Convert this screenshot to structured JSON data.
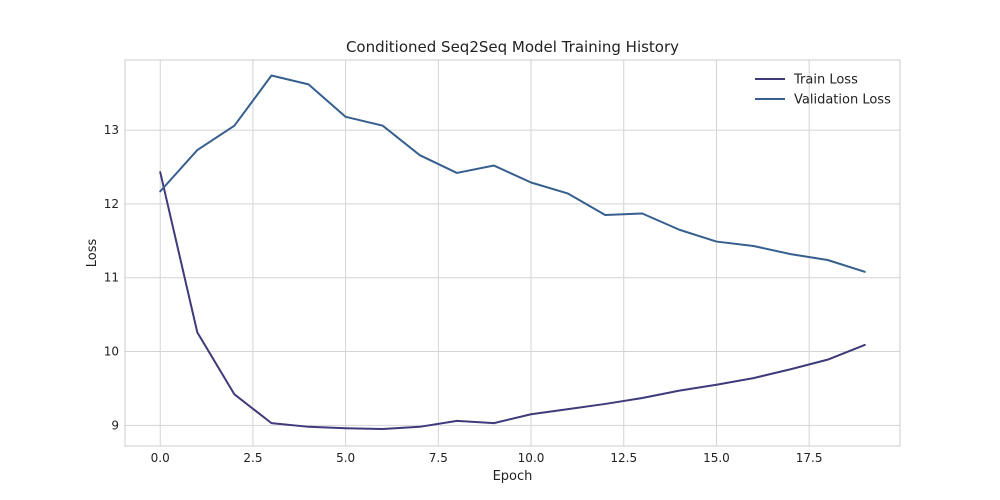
{
  "chart_data": {
    "type": "line",
    "title": "Conditioned Seq2Seq Model Training History",
    "xlabel": "Epoch",
    "ylabel": "Loss",
    "xlim": [
      -0.95,
      19.95
    ],
    "ylim": [
      8.72,
      13.95
    ],
    "xticks": [
      0,
      2.5,
      5,
      7.5,
      10,
      12.5,
      15,
      17.5
    ],
    "xtick_labels": [
      "0.0",
      "2.5",
      "5.0",
      "7.5",
      "10.0",
      "12.5",
      "15.0",
      "17.5"
    ],
    "yticks": [
      9,
      10,
      11,
      12,
      13
    ],
    "ytick_labels": [
      "9",
      "10",
      "11",
      "12",
      "13"
    ],
    "grid": true,
    "legend_position": "top-right",
    "x": [
      0,
      1,
      2,
      3,
      4,
      5,
      6,
      7,
      8,
      9,
      10,
      11,
      12,
      13,
      14,
      15,
      16,
      17,
      18,
      19
    ],
    "series": [
      {
        "name": "Train Loss",
        "color": "#3f3a7a",
        "values": [
          12.43,
          10.26,
          9.42,
          9.03,
          8.98,
          8.96,
          8.95,
          8.98,
          9.06,
          9.03,
          9.15,
          9.22,
          9.29,
          9.37,
          9.47,
          9.55,
          9.64,
          9.76,
          9.89,
          10.09
        ]
      },
      {
        "name": "Validation Loss",
        "color": "#365f8f",
        "values": [
          12.17,
          12.73,
          13.06,
          13.74,
          13.62,
          13.18,
          13.06,
          12.66,
          12.42,
          12.52,
          12.29,
          12.14,
          11.85,
          11.87,
          11.65,
          11.49,
          11.43,
          11.32,
          11.24,
          11.08
        ]
      }
    ]
  }
}
